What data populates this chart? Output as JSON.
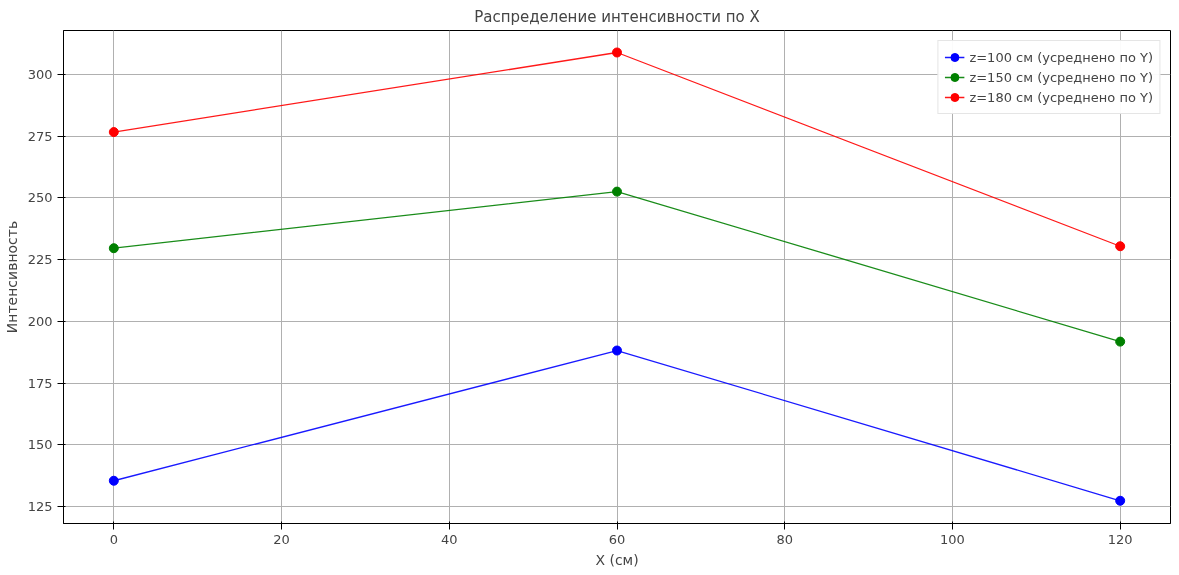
{
  "chart_data": {
    "type": "line",
    "title": "Распределение интенсивности по X",
    "xlabel": "X (см)",
    "ylabel": "Интенсивность",
    "x": [
      0,
      60,
      120
    ],
    "series": [
      {
        "name": "z=100 см (усреднено по Y)",
        "color": "#0000ff",
        "values": [
          135.5,
          188.2,
          127.4
        ]
      },
      {
        "name": "z=150 см (усреднено по Y)",
        "color": "#008000",
        "values": [
          229.6,
          252.5,
          191.8
        ]
      },
      {
        "name": "z=180 см (усреднено по Y)",
        "color": "#ff0000",
        "values": [
          276.6,
          308.8,
          230.4
        ]
      }
    ],
    "xlim": [
      -6,
      126
    ],
    "ylim": [
      118.2,
      317.7
    ],
    "xticks": [
      0,
      20,
      40,
      60,
      80,
      100,
      120
    ],
    "yticks": [
      125,
      150,
      175,
      200,
      225,
      250,
      275,
      300
    ],
    "grid": true,
    "legend": "top right",
    "marker": "circle",
    "line_style": "solid"
  }
}
